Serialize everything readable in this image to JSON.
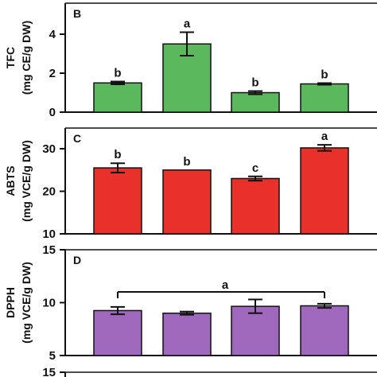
{
  "chart_data": [
    {
      "type": "bar",
      "panel": "B",
      "ylabel_main": "TFC",
      "ylabel_unit": "(mg CE/g DW)",
      "ylim": [
        0,
        5
      ],
      "yticks": [
        0,
        2,
        4
      ],
      "color": "#5cb85c",
      "values": [
        1.5,
        3.5,
        1.0,
        1.45
      ],
      "errors": [
        0.07,
        0.6,
        0.08,
        0.04
      ],
      "letters": [
        "b",
        "a",
        "b",
        "b"
      ],
      "group_letter": null
    },
    {
      "type": "bar",
      "panel": "C",
      "ylabel_main": "ABTS",
      "ylabel_unit": "(mg VCE/g DW)",
      "ylim": [
        10,
        33
      ],
      "yticks": [
        10,
        20,
        30
      ],
      "color": "#e8312a",
      "values": [
        25.5,
        25.0,
        23.0,
        30.2
      ],
      "errors": [
        1.1,
        0,
        0.5,
        0.7
      ],
      "letters": [
        "b",
        "b",
        "c",
        "a"
      ],
      "group_letter": null
    },
    {
      "type": "bar",
      "panel": "D",
      "ylabel_main": "DPPH",
      "ylabel_unit": "(mg VCE/g DW)",
      "ylim": [
        5,
        15
      ],
      "yticks": [
        5,
        10,
        15
      ],
      "color": "#a068bd",
      "values": [
        9.25,
        9.0,
        9.65,
        9.7
      ],
      "errors": [
        0.35,
        0.15,
        0.65,
        0.2
      ],
      "letters": [
        null,
        null,
        null,
        null
      ],
      "group_letter": "a"
    }
  ],
  "next_panel_top_tick": "15"
}
